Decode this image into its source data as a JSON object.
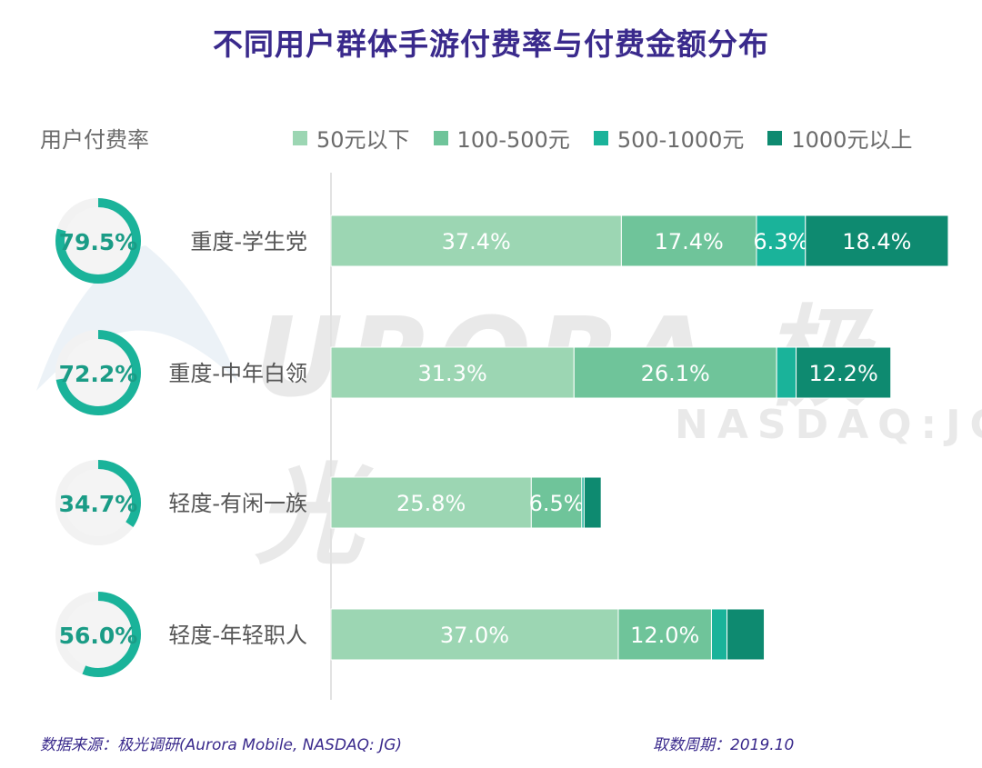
{
  "title": "不同用户群体手游付费率与付费金额分布",
  "rate_header": "用户付费率",
  "watermark": {
    "brand": "URORA 极光",
    "ticker": "NASDAQ:JG"
  },
  "legend": [
    {
      "label": "50元以下",
      "color": "#9cd6b3"
    },
    {
      "label": "100-500元",
      "color": "#6fc49a"
    },
    {
      "label": "500-1000元",
      "color": "#1ab39a"
    },
    {
      "label": "1000元以上",
      "color": "#0e8a70"
    }
  ],
  "chart_data": {
    "type": "bar",
    "orientation": "horizontal",
    "stacked": true,
    "categories": [
      "重度-学生党",
      "重度-中年白领",
      "轻度-有闲一族",
      "轻度-年轻职人"
    ],
    "payment_rates": [
      "79.5%",
      "72.2%",
      "34.7%",
      "56.0%"
    ],
    "payment_rate_values": [
      79.5,
      72.2,
      34.7,
      56.0
    ],
    "series": [
      {
        "name": "50元以下",
        "values": [
          37.4,
          31.3,
          25.8,
          37.0
        ],
        "labels": [
          "37.4%",
          "31.3%",
          "25.8%",
          "37.0%"
        ]
      },
      {
        "name": "100-500元",
        "values": [
          17.4,
          26.1,
          6.5,
          12.0
        ],
        "labels": [
          "17.4%",
          "26.1%",
          "6.5%",
          "12.0%"
        ]
      },
      {
        "name": "500-1000元",
        "values": [
          6.3,
          2.5,
          0.3,
          2.0
        ],
        "labels": [
          "6.3%",
          "",
          "",
          ""
        ]
      },
      {
        "name": "1000元以上",
        "values": [
          18.4,
          12.2,
          2.2,
          4.8
        ],
        "labels": [
          "18.4%",
          "12.2%",
          "",
          ""
        ]
      }
    ],
    "colors": [
      "#9cd6b3",
      "#6fc49a",
      "#1ab39a",
      "#0e8a70"
    ],
    "ring_color": "#1ab39a",
    "ring_track_color": "#f2f2f2"
  },
  "footer": {
    "source": "数据来源：极光调研(Aurora Mobile, NASDAQ: JG)",
    "period": "取数周期：2019.10"
  }
}
